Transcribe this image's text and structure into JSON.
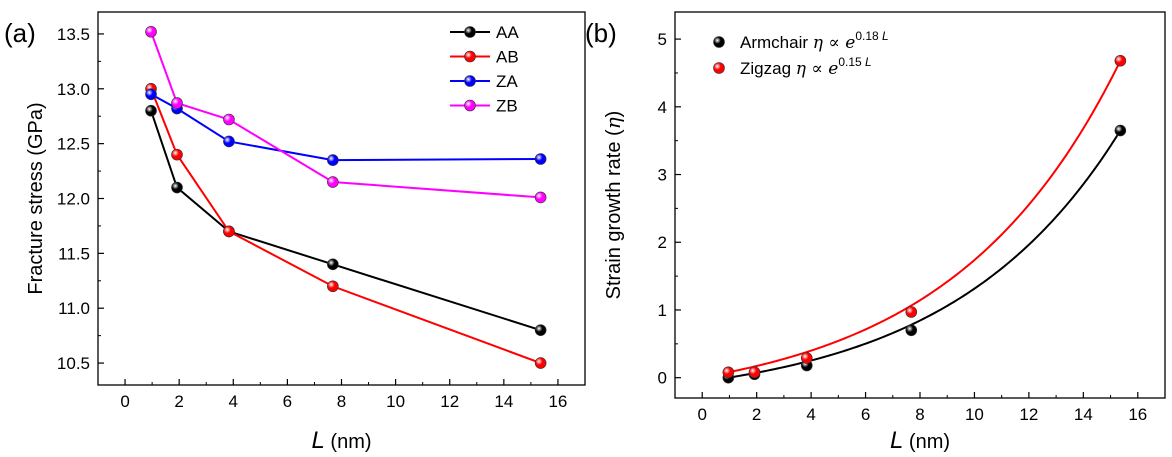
{
  "chart_data": [
    {
      "type": "line",
      "panel_label": "(a)",
      "title": "",
      "xlabel": {
        "var": "L",
        "unit": "(nm)"
      },
      "ylabel": "Fracture stress (GPa)",
      "xlim": [
        -1,
        17
      ],
      "ylim": [
        10.3,
        13.7
      ],
      "xticks": [
        0,
        2,
        4,
        6,
        8,
        10,
        12,
        14,
        16
      ],
      "yticks": [
        "10.5",
        "11.0",
        "11.5",
        "12.0",
        "12.5",
        "13.0",
        "13.5"
      ],
      "x": [
        0.96,
        1.92,
        3.84,
        7.68,
        15.36
      ],
      "legend": "top-right",
      "grid": false,
      "series": [
        {
          "name": "AA",
          "color": "#000000",
          "values": [
            12.8,
            12.1,
            11.7,
            11.4,
            10.8
          ]
        },
        {
          "name": "AB",
          "color": "#ff0000",
          "values": [
            13.0,
            12.4,
            11.7,
            11.2,
            10.5
          ]
        },
        {
          "name": "ZA",
          "color": "#0000ff",
          "values": [
            12.95,
            12.82,
            12.52,
            12.35,
            12.36
          ]
        },
        {
          "name": "ZB",
          "color": "#ff00ff",
          "values": [
            13.52,
            12.87,
            12.72,
            12.15,
            12.01
          ]
        }
      ]
    },
    {
      "type": "scatter",
      "panel_label": "(b)",
      "title": "",
      "xlabel": {
        "var": "L",
        "unit": "(nm)"
      },
      "ylabel": {
        "text": "Strain growth rate (",
        "symbol": "η",
        "close": ")"
      },
      "xlim": [
        -1,
        17
      ],
      "ylim": [
        -0.3,
        5.4
      ],
      "xticks": [
        0,
        2,
        4,
        6,
        8,
        10,
        12,
        14,
        16
      ],
      "yticks": [
        0,
        1,
        2,
        3,
        4,
        5
      ],
      "x": [
        0.96,
        1.92,
        3.84,
        7.68,
        15.36
      ],
      "legend": "top-left",
      "grid": false,
      "series": [
        {
          "name": "Armchair",
          "relation": "η ∝ e",
          "exponent": "0.18",
          "exponent_var": "L",
          "color": "#000000",
          "values": [
            0.0,
            0.05,
            0.18,
            0.7,
            3.65
          ]
        },
        {
          "name": "Zigzag",
          "relation": "η ∝ e",
          "exponent": "0.15",
          "exponent_var": "L",
          "color": "#ff0000",
          "values": [
            0.08,
            0.08,
            0.29,
            0.97,
            4.68
          ]
        }
      ]
    }
  ]
}
